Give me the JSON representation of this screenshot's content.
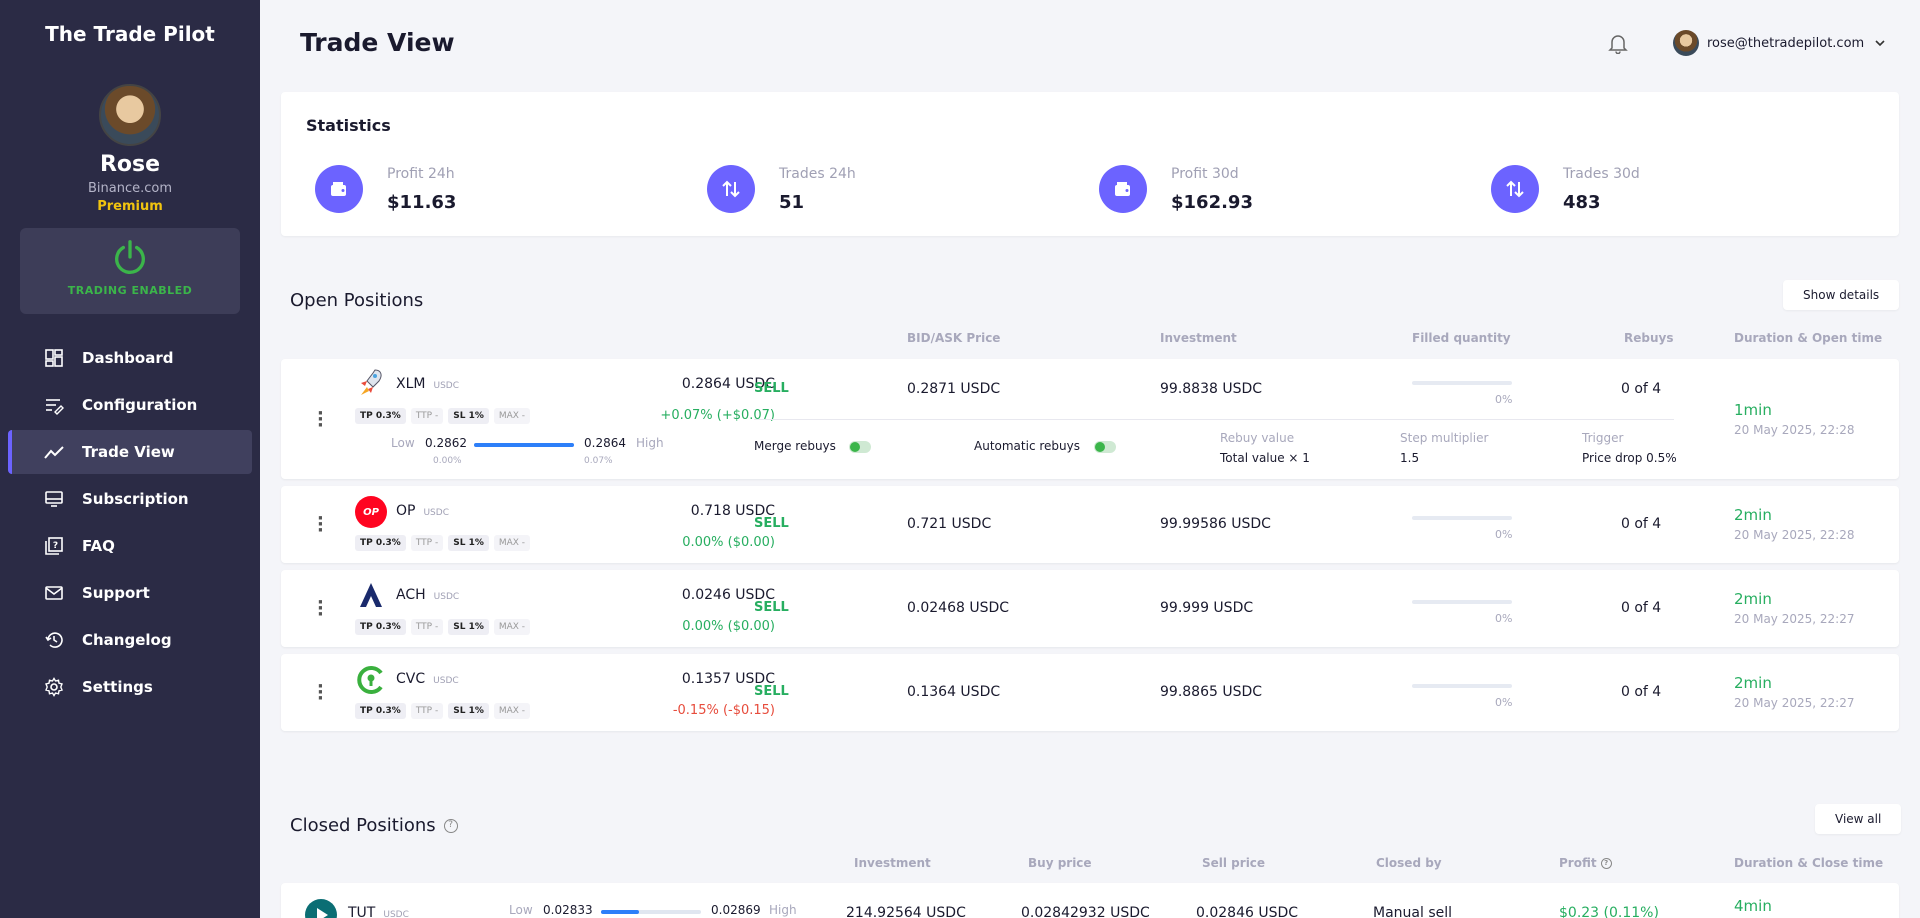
{
  "sidebar": {
    "brand": "The Trade Pilot",
    "user": {
      "name": "Rose",
      "exchange": "Binance.com",
      "plan": "Premium"
    },
    "trading_status": "TRADING ENABLED",
    "nav": [
      {
        "label": "Dashboard",
        "icon": "dashboard-icon"
      },
      {
        "label": "Configuration",
        "icon": "configuration-icon"
      },
      {
        "label": "Trade View",
        "icon": "trade-view-icon",
        "active": true
      },
      {
        "label": "Subscription",
        "icon": "subscription-icon"
      },
      {
        "label": "FAQ",
        "icon": "faq-icon"
      },
      {
        "label": "Support",
        "icon": "mail-icon"
      },
      {
        "label": "Changelog",
        "icon": "history-icon"
      },
      {
        "label": "Settings",
        "icon": "gear-icon"
      }
    ]
  },
  "header": {
    "title": "Trade View",
    "email": "rose@thetradepilot.com"
  },
  "statistics": {
    "title": "Statistics",
    "items": [
      {
        "label": "Profit 24h",
        "value": "$11.63"
      },
      {
        "label": "Trades 24h",
        "value": "51"
      },
      {
        "label": "Profit 30d",
        "value": "$162.93"
      },
      {
        "label": "Trades 30d",
        "value": "483"
      }
    ]
  },
  "open_positions": {
    "title": "Open Positions",
    "button": "Show details",
    "columns": [
      "BID/ASK Price",
      "Investment",
      "Filled quantity",
      "Rebuys",
      "Duration & Open time"
    ],
    "rows": [
      {
        "coin": "XLM",
        "quote": "USDC",
        "price": "0.2864 USDC",
        "change": "+0.07% (+$0.07)",
        "change_dir": "up",
        "tags": [
          "TP 0.3%",
          "TTP -",
          "SL 1%",
          "MAX -"
        ],
        "range": {
          "low_label": "Low",
          "low": "0.2862",
          "high": "0.2864",
          "high_label": "High",
          "low_pct": "0.00%",
          "high_pct": "0.07%",
          "position": 1.0
        },
        "side": "SELL",
        "bid_ask": "0.2871 USDC",
        "investment": "99.8838 USDC",
        "filled_pct": "0%",
        "filled_fraction": 0,
        "rebuys": "0 of 4",
        "duration": "1min",
        "opened": "20 May 2025, 22:28",
        "details": {
          "merge_rebuys": "Merge rebuys",
          "automatic_rebuys": "Automatic rebuys",
          "rebuy_value_label": "Rebuy value",
          "rebuy_value": "Total value × 1",
          "step_label": "Step multiplier",
          "step": "1.5",
          "trigger_label": "Trigger",
          "trigger": "Price drop 0.5%"
        }
      },
      {
        "coin": "OP",
        "quote": "USDC",
        "price": "0.718 USDC",
        "change": "0.00% ($0.00)",
        "change_dir": "up",
        "tags": [
          "TP 0.3%",
          "TTP -",
          "SL 1%",
          "MAX -"
        ],
        "side": "SELL",
        "bid_ask": "0.721 USDC",
        "investment": "99.99586 USDC",
        "filled_pct": "0%",
        "filled_fraction": 0,
        "rebuys": "0 of 4",
        "duration": "2min",
        "opened": "20 May 2025, 22:28"
      },
      {
        "coin": "ACH",
        "quote": "USDC",
        "price": "0.0246 USDC",
        "change": "0.00% ($0.00)",
        "change_dir": "up",
        "tags": [
          "TP 0.3%",
          "TTP -",
          "SL 1%",
          "MAX -"
        ],
        "side": "SELL",
        "bid_ask": "0.02468 USDC",
        "investment": "99.999 USDC",
        "filled_pct": "0%",
        "filled_fraction": 0,
        "rebuys": "0 of 4",
        "duration": "2min",
        "opened": "20 May 2025, 22:27"
      },
      {
        "coin": "CVC",
        "quote": "USDC",
        "price": "0.1357 USDC",
        "change": "-0.15% (-$0.15)",
        "change_dir": "down",
        "tags": [
          "TP 0.3%",
          "TTP -",
          "SL 1%",
          "MAX -"
        ],
        "side": "SELL",
        "bid_ask": "0.1364 USDC",
        "investment": "99.8865 USDC",
        "filled_pct": "0%",
        "filled_fraction": 0,
        "rebuys": "0 of 4",
        "duration": "2min",
        "opened": "20 May 2025, 22:27"
      }
    ]
  },
  "closed_positions": {
    "title": "Closed Positions",
    "button": "View all",
    "columns": [
      "Investment",
      "Buy price",
      "Sell price",
      "Closed by",
      "Profit",
      "Duration & Close time"
    ],
    "rows": [
      {
        "coin": "TUT",
        "quote": "USDC",
        "range": {
          "low_label": "Low",
          "low": "0.02833",
          "high": "0.02869",
          "high_label": "High",
          "position": 0.38
        },
        "investment": "214.92564 USDC",
        "buy_price": "0.02842932 USDC",
        "sell_price": "0.02846 USDC",
        "closed_by": "Manual sell",
        "profit": "$0.23 (0.11%)",
        "duration": "4min"
      }
    ]
  },
  "colors": {
    "sidebar": "#2b2b45",
    "accent": "#6c63ff",
    "positive": "#27ae60",
    "negative": "#e74c3c",
    "trading_enabled": "#3bb54a"
  }
}
